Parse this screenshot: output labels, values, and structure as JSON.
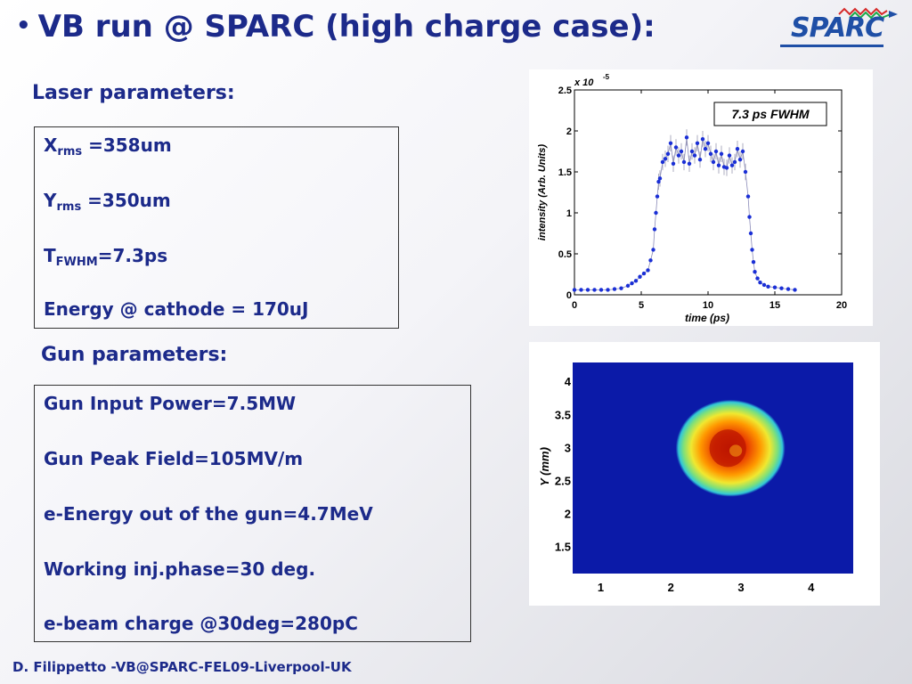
{
  "slide": {
    "bullet": "•",
    "title": "VB run @ SPARC (high charge case):",
    "logo_text": "SPARC",
    "footer": "D. Filippetto -VB@SPARC-FEL09-Liverpool-UK"
  },
  "laser": {
    "heading": "Laser parameters:",
    "x_label": "X",
    "x_sub": "rms",
    "x_value": " =358um",
    "y_label": "Y",
    "y_sub": "rms",
    "y_value": " =350um",
    "t_label": "T",
    "t_sub": "FWHM",
    "t_value": "=7.3ps",
    "energy": "Energy @ cathode = 170uJ"
  },
  "gun": {
    "heading": "Gun parameters:",
    "lines": [
      "Gun Input Power=7.5MW",
      "Gun Peak Field=105MV/m",
      "e-Energy out of the gun=4.7MeV",
      "Working inj.phase=30 deg.",
      "e-beam charge @30deg=280pC"
    ]
  },
  "chart_data": [
    {
      "type": "scatter",
      "title": "",
      "annotation": "7.3 ps FWHM",
      "xlabel": "time (ps)",
      "ylabel": "intensity (Arb. Units)",
      "y_multiplier": "x 10",
      "y_multiplier_exp": "-5",
      "xlim": [
        0,
        20
      ],
      "ylim": [
        0,
        2.5
      ],
      "xticks": [
        "0",
        "5",
        "10",
        "15",
        "20"
      ],
      "yticks": [
        "0",
        "0.5",
        "1",
        "1.5",
        "2",
        "2.5"
      ],
      "marker_color": "#1a2fd6",
      "x": [
        0,
        0.5,
        1,
        1.5,
        2,
        2.5,
        3,
        3.5,
        4,
        4.3,
        4.6,
        4.9,
        5.2,
        5.5,
        5.7,
        5.9,
        6.0,
        6.1,
        6.2,
        6.3,
        6.4,
        6.6,
        6.8,
        7.0,
        7.2,
        7.4,
        7.6,
        7.8,
        8.0,
        8.2,
        8.4,
        8.6,
        8.8,
        9.0,
        9.2,
        9.4,
        9.6,
        9.8,
        10.0,
        10.2,
        10.4,
        10.6,
        10.8,
        11.0,
        11.2,
        11.4,
        11.6,
        11.8,
        12.0,
        12.2,
        12.4,
        12.6,
        12.8,
        13.0,
        13.1,
        13.2,
        13.3,
        13.4,
        13.5,
        13.7,
        13.9,
        14.2,
        14.5,
        15.0,
        15.5,
        16.0,
        16.5
      ],
      "y": [
        0.06,
        0.06,
        0.06,
        0.06,
        0.06,
        0.06,
        0.07,
        0.08,
        0.11,
        0.14,
        0.17,
        0.22,
        0.26,
        0.3,
        0.42,
        0.55,
        0.8,
        1.0,
        1.2,
        1.38,
        1.42,
        1.62,
        1.66,
        1.72,
        1.85,
        1.6,
        1.8,
        1.7,
        1.75,
        1.62,
        1.92,
        1.6,
        1.75,
        1.7,
        1.85,
        1.65,
        1.9,
        1.78,
        1.85,
        1.72,
        1.62,
        1.75,
        1.58,
        1.72,
        1.56,
        1.55,
        1.7,
        1.58,
        1.62,
        1.78,
        1.65,
        1.75,
        1.5,
        1.2,
        0.95,
        0.75,
        0.55,
        0.4,
        0.28,
        0.2,
        0.15,
        0.12,
        0.1,
        0.09,
        0.08,
        0.07,
        0.06
      ]
    },
    {
      "type": "heatmap",
      "title": "",
      "xlabel": "",
      "ylabel": "Y (mm)",
      "xlim": [
        0.6,
        4.6
      ],
      "ylim": [
        1.1,
        4.3
      ],
      "xticks": [
        "1",
        "2",
        "3",
        "4"
      ],
      "yticks": [
        "1.5",
        "2",
        "2.5",
        "3",
        "3.5",
        "4"
      ],
      "background": "#0b1aa8",
      "spot": {
        "center_x": 2.85,
        "center_y": 3.0,
        "radius": 0.75
      }
    }
  ]
}
